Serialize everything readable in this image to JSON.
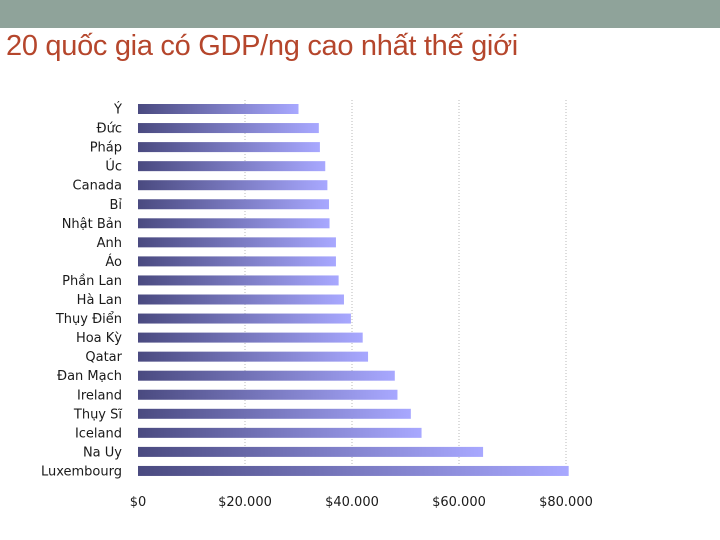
{
  "slide": {
    "title": "20 quốc gia có GDP/ng cao nhất thế giới"
  },
  "chart_data": {
    "type": "bar",
    "orientation": "horizontal",
    "title": "20 quốc gia có GDP/ng cao nhất thế giới",
    "xlabel": "",
    "ylabel": "",
    "categories": [
      "Ý",
      "Đức",
      "Pháp",
      "Úc",
      "Canada",
      "Bỉ",
      "Nhật Bản",
      "Anh",
      "Áo",
      "Phần Lan",
      "Hà Lan",
      "Thụy Điển",
      "Hoa Kỳ",
      "Qatar",
      "Đan Mạch",
      "Ireland",
      "Thụy Sĩ",
      "Iceland",
      "Na Uy",
      "Luxembourg"
    ],
    "values": [
      30000,
      33800,
      34000,
      35000,
      35400,
      35700,
      35800,
      37000,
      37000,
      37500,
      38500,
      39800,
      42000,
      43000,
      48000,
      48500,
      51000,
      53000,
      64500,
      80500
    ],
    "xlim": [
      0,
      80000
    ],
    "ticks": [
      0,
      20000,
      40000,
      60000,
      80000
    ],
    "tick_labels": [
      "$0",
      "$20.000",
      "$40.000",
      "$60.000",
      "$80.000"
    ],
    "grid": "vertical-dotted",
    "legend": "none",
    "bar_gradient": [
      "#4a4a80",
      "#a8a8ff"
    ]
  }
}
